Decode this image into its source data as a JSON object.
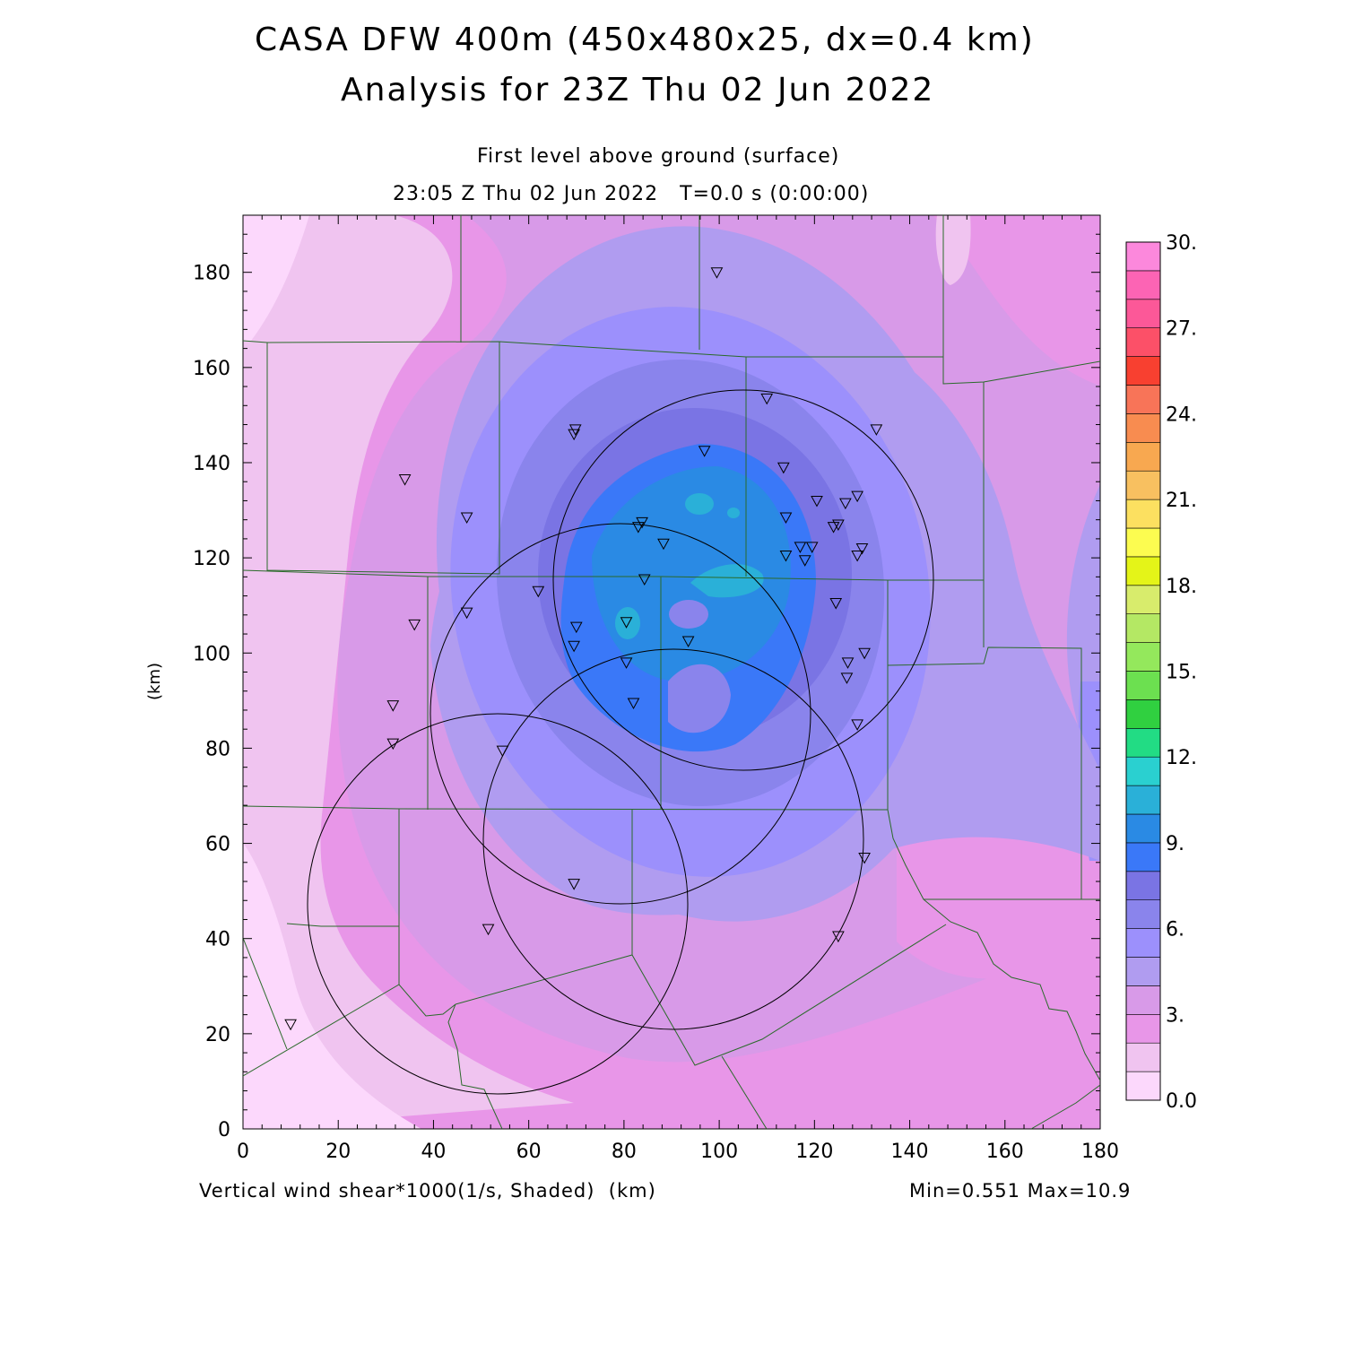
{
  "header": {
    "title_line1": "CASA DFW 400m (450x480x25, dx=0.4 km)",
    "title_line2": "Analysis for 23Z Thu 02 Jun 2022",
    "subtitle_level": "First level above ground (surface)",
    "subtitle_time": "23:05 Z Thu 02 Jun 2022   T=0.0 s (0:00:00)"
  },
  "footer": {
    "variable_label": "Vertical wind shear*1000(1/s, Shaded)  (km)",
    "minmax": "Min=0.551 Max=10.9"
  },
  "axes": {
    "ylabel": "(km)",
    "x_ticks": [
      0,
      20,
      40,
      60,
      80,
      100,
      120,
      140,
      160,
      180
    ],
    "y_ticks": [
      0,
      20,
      40,
      60,
      80,
      100,
      120,
      140,
      160,
      180
    ],
    "x_range": [
      0,
      180
    ],
    "y_range": [
      0,
      192
    ]
  },
  "colorbar": {
    "labels": [
      "0.0",
      "3.",
      "6.",
      "9.",
      "12.",
      "15.",
      "18.",
      "21.",
      "24.",
      "27.",
      "30."
    ],
    "colors": [
      "#fcd8fc",
      "#f0c4f0",
      "#e896e8",
      "#d89ae8",
      "#b09cf0",
      "#9c90fc",
      "#8a84ec",
      "#7a74e4",
      "#3a78f8",
      "#2a8ae4",
      "#2ab0d8",
      "#2ad0d0",
      "#22dc84",
      "#30d040",
      "#6ce050",
      "#94e85c",
      "#b4e864",
      "#d8ec6c",
      "#e4f418",
      "#fcfc50",
      "#fce060",
      "#f8c060",
      "#f8a850",
      "#f88c50",
      "#f87458",
      "#f84030",
      "#fc5068",
      "#fc5898",
      "#fc64b4",
      "#fc88dc"
    ]
  },
  "chart_data": {
    "type": "heatmap",
    "variable": "Vertical wind shear*1000",
    "units": "1/s",
    "min": 0.551,
    "max": 10.9,
    "contour_interval": 1,
    "max_region_center_km": [
      95,
      110
    ],
    "radar_range_rings": [
      {
        "center": [
          105,
          116
        ],
        "radius": 40
      },
      {
        "center": [
          79,
          88
        ],
        "radius": 40
      },
      {
        "center": [
          55,
          49
        ],
        "radius": 40
      },
      {
        "center": [
          89,
          61
        ],
        "radius": 40
      }
    ],
    "stations_km": [
      [
        99.5,
        180
      ],
      [
        110,
        153.5
      ],
      [
        133,
        147
      ],
      [
        69.8,
        147
      ],
      [
        69.5,
        146
      ],
      [
        96.9,
        142.5
      ],
      [
        34,
        136.5
      ],
      [
        113.5,
        139
      ],
      [
        120.5,
        132
      ],
      [
        129,
        133
      ],
      [
        126.5,
        131.5
      ],
      [
        47,
        128.5
      ],
      [
        114,
        128.5
      ],
      [
        83.8,
        127.5
      ],
      [
        83,
        126.5
      ],
      [
        125,
        127
      ],
      [
        124,
        126.5
      ],
      [
        88.3,
        123
      ],
      [
        117,
        122.3
      ],
      [
        119.5,
        122.3
      ],
      [
        130,
        122
      ],
      [
        114,
        120.5
      ],
      [
        118,
        119.5
      ],
      [
        129,
        120.5
      ],
      [
        84.3,
        115.5
      ],
      [
        62,
        113
      ],
      [
        124.5,
        110.5
      ],
      [
        47,
        108.5
      ],
      [
        36,
        106
      ],
      [
        70,
        105.5
      ],
      [
        80.5,
        106.5
      ],
      [
        69.5,
        101.5
      ],
      [
        93.5,
        102.5
      ],
      [
        130.5,
        100
      ],
      [
        127,
        98
      ],
      [
        80.5,
        98
      ],
      [
        126.8,
        94.8
      ],
      [
        82,
        89.5
      ],
      [
        31.5,
        89
      ],
      [
        31.5,
        81
      ],
      [
        54.5,
        79.5
      ],
      [
        129,
        85
      ],
      [
        130.5,
        57
      ],
      [
        69.5,
        51.5
      ],
      [
        51.5,
        42
      ],
      [
        125,
        40.5
      ],
      [
        10,
        22
      ]
    ]
  }
}
